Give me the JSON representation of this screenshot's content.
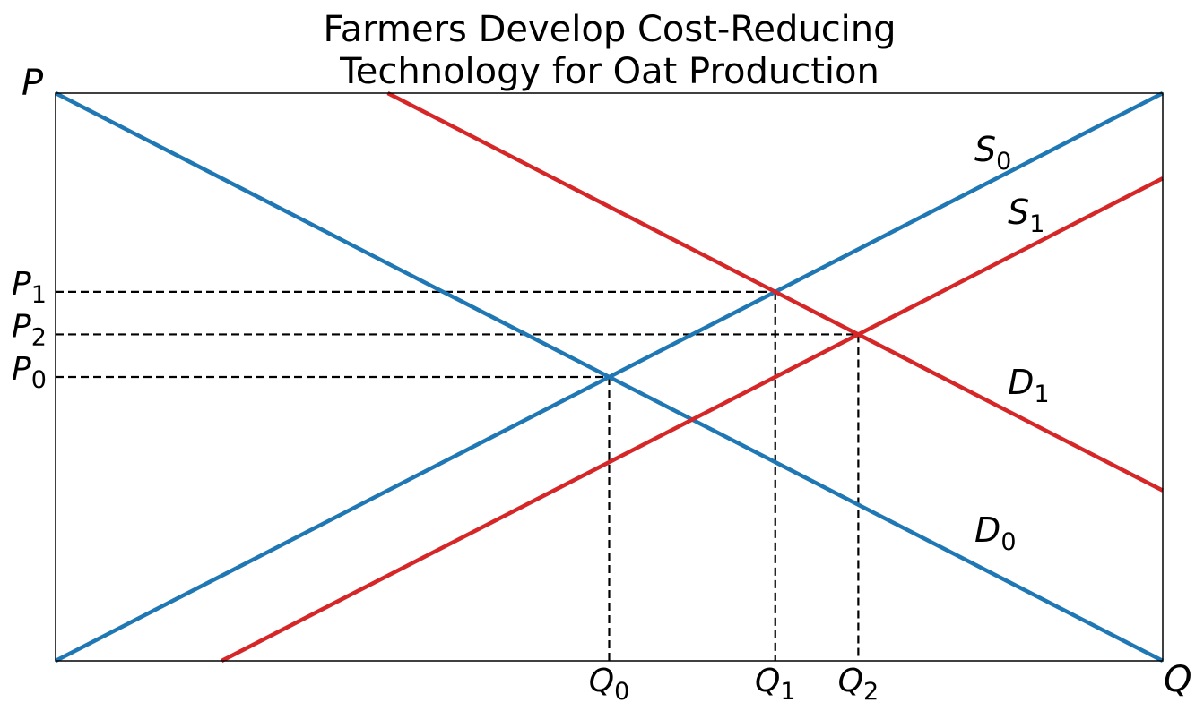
{
  "chart_data": {
    "type": "line",
    "title_lines": [
      "Farmers Develop Cost-Reducing",
      "Technology for Oat Production"
    ],
    "xlabel": "Q",
    "ylabel": "P",
    "xlim": [
      0,
      10
    ],
    "ylim": [
      0,
      10
    ],
    "grid": false,
    "colors": {
      "supply_demand_initial": "#1f77b4",
      "shifted": "#d62728",
      "guide": "#000000"
    },
    "series": [
      {
        "name": "S0",
        "base": "S",
        "sub": "0",
        "color": "#1f77b4",
        "x": [
          0,
          10
        ],
        "y": [
          0,
          10
        ]
      },
      {
        "name": "D0",
        "base": "D",
        "sub": "0",
        "color": "#1f77b4",
        "x": [
          0,
          10
        ],
        "y": [
          10,
          0
        ]
      },
      {
        "name": "S1",
        "base": "S",
        "sub": "1",
        "color": "#d62728",
        "x": [
          1.5,
          10
        ],
        "y": [
          0,
          8.5
        ]
      },
      {
        "name": "D1",
        "base": "D",
        "sub": "1",
        "color": "#d62728",
        "x": [
          3,
          10
        ],
        "y": [
          10,
          3
        ]
      }
    ],
    "equilibria": [
      {
        "q_label": "Q",
        "q_sub": "0",
        "p_label": "P",
        "p_sub": "0",
        "x": 5,
        "y": 5
      },
      {
        "q_label": "Q",
        "q_sub": "1",
        "p_label": "P",
        "p_sub": "1",
        "x": 6.5,
        "y": 6.5
      },
      {
        "q_label": "Q",
        "q_sub": "2",
        "p_label": "P",
        "p_sub": "2",
        "x": 7.25,
        "y": 5.75
      }
    ],
    "curve_label_positions": [
      {
        "series": "S0",
        "x": 8.3,
        "y": 8.8
      },
      {
        "series": "S1",
        "x": 8.6,
        "y": 7.7
      },
      {
        "series": "D1",
        "x": 8.6,
        "y": 4.7
      },
      {
        "series": "D0",
        "x": 8.3,
        "y": 2.1
      }
    ]
  }
}
